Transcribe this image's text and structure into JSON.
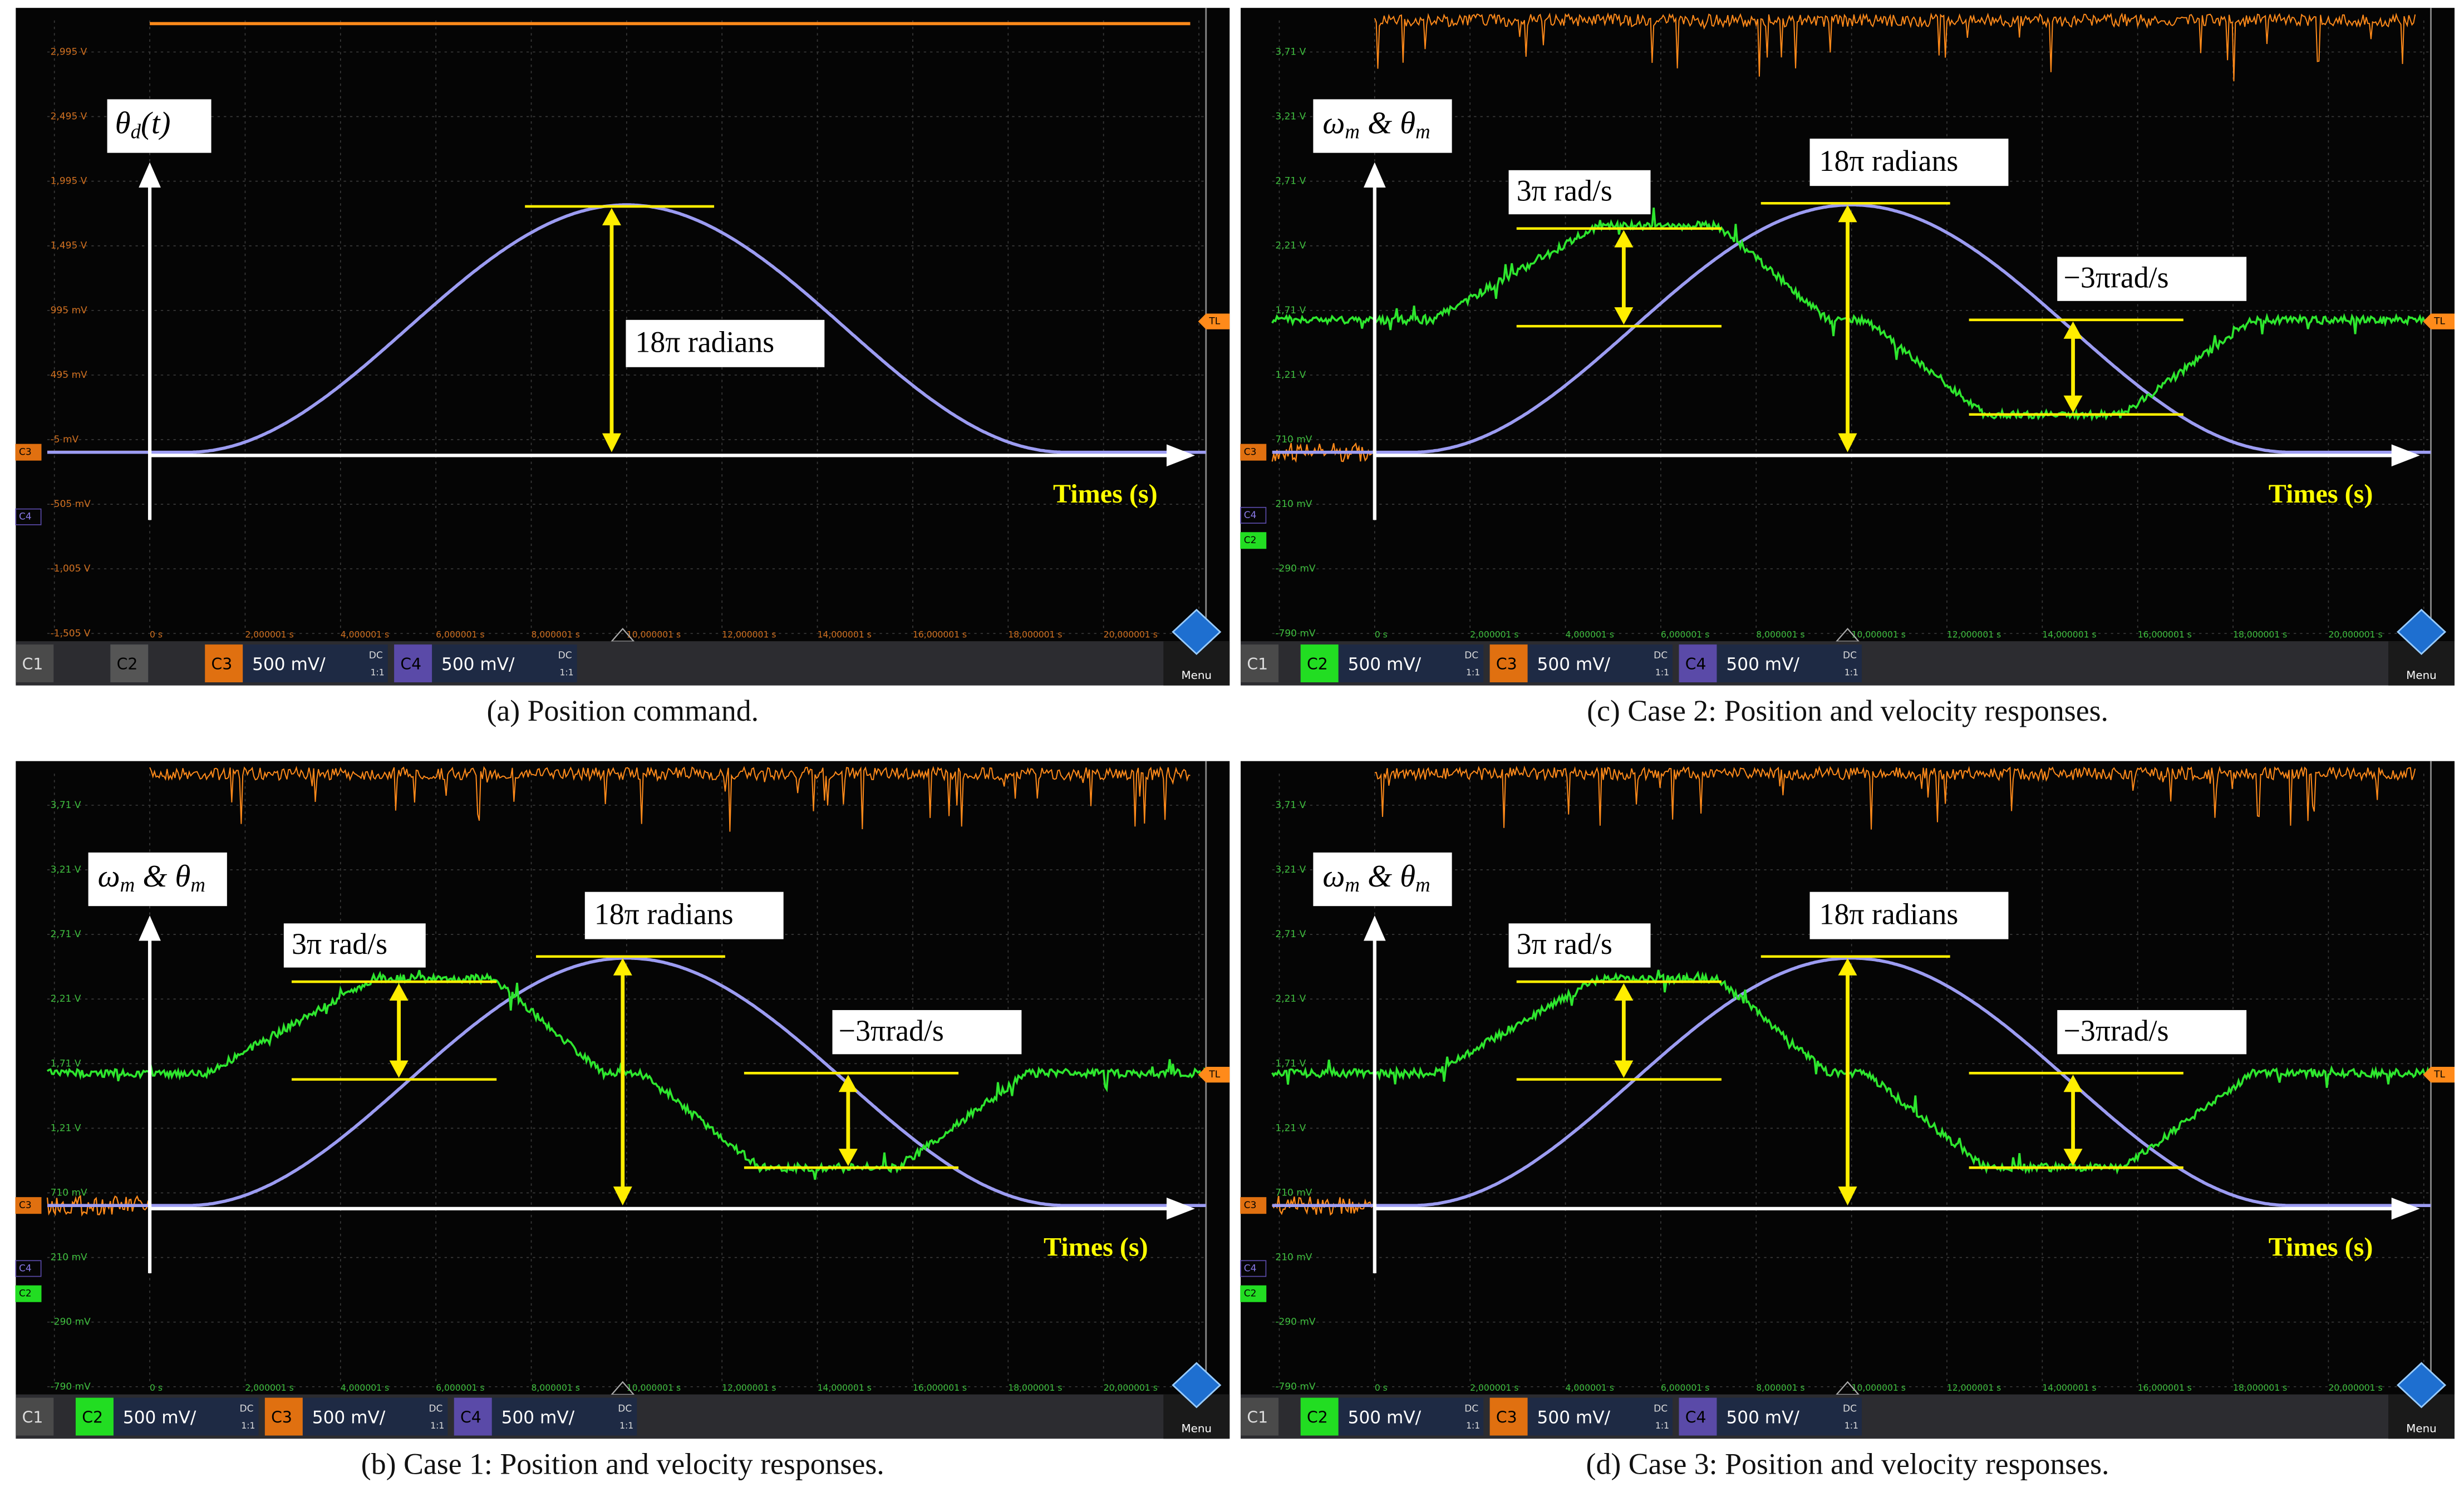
{
  "panels": [
    {
      "caption": "(a) Position command.",
      "y_label": [
        "θ",
        "d",
        "(t)"
      ],
      "position_annotation": "18π radians",
      "x_axis_label": "Times (s)",
      "y_scale": [
        "2,995 V",
        "2,495 V",
        "1,995 V",
        "1,495 V",
        "995 mV",
        "495 mV",
        "-5 mV",
        "-505 mV",
        "-1,005 V",
        "-1,505 V"
      ],
      "x_scale": [
        "0 s",
        "2,000001 s",
        "4,000001 s",
        "6,000001 s",
        "8,000001 s",
        "10,000001 s",
        "12,000001 s",
        "14,000001 s",
        "16,000001 s",
        "18,000001 s",
        "20,000001 s"
      ],
      "markers": [
        "C3",
        "C4"
      ],
      "trigger": "TL",
      "c1": "C1",
      "menu": "Menu",
      "channels": [
        {
          "label": "C2"
        },
        {
          "label": "C3",
          "volts": "500 mV/",
          "coupling": "DC",
          "ratio": "1:1"
        },
        {
          "label": "C4",
          "volts": "500 mV/",
          "coupling": "DC",
          "ratio": "1:1"
        }
      ]
    },
    {
      "caption": "(b) Case 1: Position and velocity responses.",
      "y_label": [
        "ω",
        "m",
        " & θ",
        "m"
      ],
      "position_annotation": "18π radians",
      "velocity_annotation": "3π rad/s",
      "negative_velocity_annotation": "−3πrad/s",
      "x_axis_label": "Times (s)",
      "y_scale": [
        "3,71 V",
        "3,21 V",
        "2,71 V",
        "2,21 V",
        "1,71 V",
        "1,21 V",
        "710 mV",
        "210 mV",
        "-290 mV",
        "-790 mV"
      ],
      "x_scale": [
        "0 s",
        "2,000001 s",
        "4,000001 s",
        "6,000001 s",
        "8,000001 s",
        "10,000001 s",
        "12,000001 s",
        "14,000001 s",
        "16,000001 s",
        "18,000001 s",
        "20,000001 s"
      ],
      "markers": [
        "C3",
        "C4",
        "C2"
      ],
      "trigger": "TL",
      "c1": "C1",
      "menu": "Menu",
      "channels": [
        {
          "label": "C2",
          "volts": "500 mV/",
          "coupling": "DC",
          "ratio": "1:1"
        },
        {
          "label": "C3",
          "volts": "500 mV/",
          "coupling": "DC",
          "ratio": "1:1"
        },
        {
          "label": "C4",
          "volts": "500 mV/",
          "coupling": "DC",
          "ratio": "1:1"
        }
      ]
    },
    {
      "caption": "(c) Case 2: Position and velocity responses.",
      "y_label": [
        "ω",
        "m",
        " & θ",
        "m"
      ],
      "position_annotation": "18π radians",
      "velocity_annotation": "3π rad/s",
      "negative_velocity_annotation": "−3πrad/s",
      "x_axis_label": "Times (s)",
      "y_scale": [
        "3,71 V",
        "3,21 V",
        "2,71 V",
        "2,21 V",
        "1,71 V",
        "1,21 V",
        "710 mV",
        "210 mV",
        "-290 mV",
        "-790 mV"
      ],
      "x_scale": [
        "0 s",
        "2,000001 s",
        "4,000001 s",
        "6,000001 s",
        "8,000001 s",
        "10,000001 s",
        "12,000001 s",
        "14,000001 s",
        "16,000001 s",
        "18,000001 s",
        "20,000001 s"
      ],
      "markers": [
        "C3",
        "C4",
        "C2"
      ],
      "trigger": "TL",
      "c1": "C1",
      "menu": "Menu",
      "channels": [
        {
          "label": "C2",
          "volts": "500 mV/",
          "coupling": "DC",
          "ratio": "1:1"
        },
        {
          "label": "C3",
          "volts": "500 mV/",
          "coupling": "DC",
          "ratio": "1:1"
        },
        {
          "label": "C4",
          "volts": "500 mV/",
          "coupling": "DC",
          "ratio": "1:1"
        }
      ]
    },
    {
      "caption": "(d) Case 3: Position and velocity responses.",
      "y_label": [
        "ω",
        "m",
        " & θ",
        "m"
      ],
      "position_annotation": "18π radians",
      "velocity_annotation": "3π rad/s",
      "negative_velocity_annotation": "−3πrad/s",
      "x_axis_label": "Times (s)",
      "y_scale": [
        "3,71 V",
        "3,21 V",
        "2,71 V",
        "2,21 V",
        "1,71 V",
        "1,21 V",
        "710 mV",
        "210 mV",
        "-290 mV",
        "-790 mV"
      ],
      "x_scale": [
        "0 s",
        "2,000001 s",
        "4,000001 s",
        "6,000001 s",
        "8,000001 s",
        "10,000001 s",
        "12,000001 s",
        "14,000001 s",
        "16,000001 s",
        "18,000001 s",
        "20,000001 s"
      ],
      "markers": [
        "C3",
        "C4",
        "C2"
      ],
      "trigger": "TL",
      "c1": "C1",
      "menu": "Menu",
      "channels": [
        {
          "label": "C2",
          "volts": "500 mV/",
          "coupling": "DC",
          "ratio": "1:1"
        },
        {
          "label": "C3",
          "volts": "500 mV/",
          "coupling": "DC",
          "ratio": "1:1"
        },
        {
          "label": "C4",
          "volts": "500 mV/",
          "coupling": "DC",
          "ratio": "1:1"
        }
      ]
    }
  ]
}
